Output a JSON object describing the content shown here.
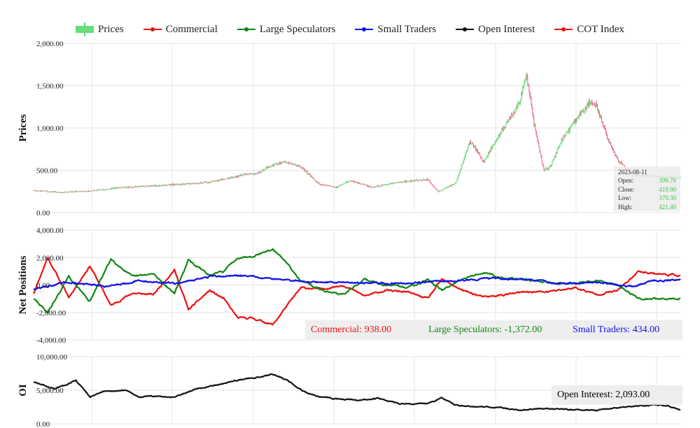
{
  "legend": {
    "items": [
      {
        "label": "Prices",
        "color": "#66dd77",
        "kind": "candle"
      },
      {
        "label": "Commercial",
        "color": "#ee1111",
        "kind": "line"
      },
      {
        "label": "Large Speculators",
        "color": "#118811",
        "kind": "line"
      },
      {
        "label": "Small Traders",
        "color": "#1111ee",
        "kind": "line"
      },
      {
        "label": "Open Interest",
        "color": "#111111",
        "kind": "line"
      },
      {
        "label": "COT Index",
        "color": "#ee1111",
        "kind": "line"
      }
    ]
  },
  "tooltip": {
    "date": "2023-08-11",
    "open_label": "Open:",
    "open": "399.70",
    "close_label": "Close:",
    "close": "419.90",
    "low_label": "Low:",
    "low": "379.30",
    "high_label": "High:",
    "high": "421.40"
  },
  "net_readout": {
    "commercial": "Commercial: 938.00",
    "large": "Large Speculators: -1,372.00",
    "small": "Small Traders: 434.00"
  },
  "oi_readout": "Open Interest: 2,093.00",
  "colors": {
    "up": "#66dd77",
    "down": "#ee6688",
    "commercial": "#ee1111",
    "large": "#118811",
    "small": "#1111ee",
    "oi": "#111111",
    "grid": "#e4e4e4"
  },
  "chart_data": [
    {
      "type": "candlestick",
      "ylabel": "Prices",
      "ylim": [
        0,
        2000
      ],
      "yticks": [
        "2,000.00",
        "1,500.00",
        "1,000.00",
        "500.00",
        "0.00"
      ],
      "ytick_values": [
        2000,
        1500,
        1000,
        500,
        0
      ],
      "n_points": 920,
      "price_keypoints": [
        [
          0,
          260
        ],
        [
          40,
          240
        ],
        [
          80,
          255
        ],
        [
          130,
          300
        ],
        [
          200,
          330
        ],
        [
          250,
          360
        ],
        [
          300,
          450
        ],
        [
          320,
          470
        ],
        [
          340,
          560
        ],
        [
          355,
          610
        ],
        [
          380,
          540
        ],
        [
          405,
          340
        ],
        [
          430,
          300
        ],
        [
          450,
          380
        ],
        [
          480,
          300
        ],
        [
          520,
          360
        ],
        [
          560,
          390
        ],
        [
          575,
          250
        ],
        [
          600,
          350
        ],
        [
          610,
          600
        ],
        [
          620,
          850
        ],
        [
          640,
          600
        ],
        [
          660,
          900
        ],
        [
          675,
          1100
        ],
        [
          690,
          1280
        ],
        [
          700,
          1650
        ],
        [
          710,
          1100
        ],
        [
          725,
          500
        ],
        [
          735,
          550
        ],
        [
          750,
          850
        ],
        [
          770,
          1100
        ],
        [
          790,
          1300
        ],
        [
          800,
          1250
        ],
        [
          815,
          900
        ],
        [
          830,
          620
        ],
        [
          850,
          450
        ],
        [
          880,
          430
        ],
        [
          920,
          410
        ]
      ]
    },
    {
      "type": "line",
      "ylabel": "Net Positions",
      "ylim": [
        -4000,
        4000
      ],
      "yticks": [
        "4,000.00",
        "2,000.00",
        "0.00",
        "-2,000.00",
        "-4,000.00"
      ],
      "ytick_values": [
        4000,
        2000,
        0,
        -2000,
        -4000
      ],
      "series": [
        {
          "name": "Commercial",
          "seed": 11,
          "keypoints": [
            [
              0,
              -600
            ],
            [
              20,
              2000
            ],
            [
              50,
              -900
            ],
            [
              80,
              1400
            ],
            [
              110,
              -1500
            ],
            [
              140,
              -600
            ],
            [
              170,
              -700
            ],
            [
              200,
              1100
            ],
            [
              220,
              -1800
            ],
            [
              250,
              -400
            ],
            [
              270,
              -1000
            ],
            [
              290,
              -2400
            ],
            [
              310,
              -2400
            ],
            [
              340,
              -2900
            ],
            [
              360,
              -1500
            ],
            [
              380,
              -200
            ],
            [
              410,
              -300
            ],
            [
              440,
              0
            ],
            [
              470,
              -800
            ],
            [
              500,
              -400
            ],
            [
              530,
              -500
            ],
            [
              560,
              -1000
            ],
            [
              580,
              400
            ],
            [
              610,
              -400
            ],
            [
              640,
              -900
            ],
            [
              670,
              -700
            ],
            [
              700,
              -500
            ],
            [
              730,
              -500
            ],
            [
              770,
              -200
            ],
            [
              800,
              -700
            ],
            [
              830,
              -400
            ],
            [
              860,
              1000
            ],
            [
              890,
              800
            ],
            [
              920,
              700
            ]
          ]
        },
        {
          "name": "Large Speculators",
          "seed": 29,
          "keypoints": [
            [
              0,
              -1000
            ],
            [
              20,
              -2000
            ],
            [
              50,
              600
            ],
            [
              80,
              -1200
            ],
            [
              110,
              1900
            ],
            [
              140,
              600
            ],
            [
              170,
              800
            ],
            [
              200,
              -600
            ],
            [
              220,
              1800
            ],
            [
              250,
              700
            ],
            [
              270,
              1000
            ],
            [
              290,
              2000
            ],
            [
              310,
              2100
            ],
            [
              340,
              2600
            ],
            [
              360,
              1600
            ],
            [
              380,
              300
            ],
            [
              410,
              -400
            ],
            [
              440,
              -700
            ],
            [
              470,
              400
            ],
            [
              500,
              0
            ],
            [
              530,
              -200
            ],
            [
              560,
              400
            ],
            [
              580,
              -400
            ],
            [
              610,
              500
            ],
            [
              640,
              900
            ],
            [
              670,
              500
            ],
            [
              700,
              400
            ],
            [
              730,
              200
            ],
            [
              770,
              100
            ],
            [
              800,
              300
            ],
            [
              830,
              0
            ],
            [
              860,
              -1000
            ],
            [
              890,
              -1000
            ],
            [
              920,
              -1000
            ]
          ]
        },
        {
          "name": "Small Traders",
          "seed": 47,
          "keypoints": [
            [
              0,
              -300
            ],
            [
              50,
              200
            ],
            [
              100,
              -100
            ],
            [
              150,
              300
            ],
            [
              200,
              100
            ],
            [
              250,
              600
            ],
            [
              300,
              700
            ],
            [
              350,
              400
            ],
            [
              400,
              200
            ],
            [
              450,
              200
            ],
            [
              500,
              100
            ],
            [
              550,
              200
            ],
            [
              600,
              300
            ],
            [
              650,
              500
            ],
            [
              700,
              400
            ],
            [
              750,
              100
            ],
            [
              800,
              200
            ],
            [
              850,
              -100
            ],
            [
              880,
              300
            ],
            [
              920,
              400
            ]
          ]
        }
      ]
    },
    {
      "type": "line",
      "ylabel": "OI",
      "ylim": [
        0,
        10000
      ],
      "yticks": [
        "10,000.00",
        "5,000.00",
        "0.00"
      ],
      "ytick_values": [
        10000,
        5000,
        0
      ],
      "series": [
        {
          "name": "Open Interest",
          "seed": 83,
          "keypoints": [
            [
              0,
              6200
            ],
            [
              30,
              5200
            ],
            [
              60,
              6500
            ],
            [
              80,
              4000
            ],
            [
              100,
              4800
            ],
            [
              130,
              5000
            ],
            [
              150,
              4000
            ],
            [
              170,
              4100
            ],
            [
              200,
              4000
            ],
            [
              230,
              5200
            ],
            [
              260,
              5800
            ],
            [
              290,
              6500
            ],
            [
              320,
              7000
            ],
            [
              340,
              7400
            ],
            [
              360,
              6500
            ],
            [
              380,
              5000
            ],
            [
              400,
              4200
            ],
            [
              430,
              3700
            ],
            [
              460,
              3500
            ],
            [
              490,
              3800
            ],
            [
              520,
              3000
            ],
            [
              560,
              3000
            ],
            [
              580,
              3800
            ],
            [
              600,
              2800
            ],
            [
              630,
              2500
            ],
            [
              660,
              2500
            ],
            [
              690,
              2000
            ],
            [
              720,
              2300
            ],
            [
              760,
              2100
            ],
            [
              800,
              2000
            ],
            [
              840,
              2500
            ],
            [
              880,
              2800
            ],
            [
              900,
              2700
            ],
            [
              920,
              2093
            ]
          ]
        }
      ]
    }
  ]
}
